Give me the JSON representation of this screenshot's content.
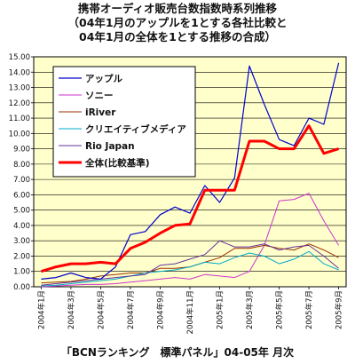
{
  "title_lines": [
    "携帯オーディオ販売台数指数時系列推移",
    "（04年1月のアップルを1とする各社比較と",
    "04年1月の全体を1とする推移の合成）"
  ],
  "footer": "「BCNランキング　標準パネル」04-05年 月次",
  "chart_data": {
    "type": "line",
    "x": [
      "2004年1月",
      "2004年2月",
      "2004年3月",
      "2004年4月",
      "2004年5月",
      "2004年6月",
      "2004年7月",
      "2004年8月",
      "2004年9月",
      "2004年10月",
      "2004年11月",
      "2004年12月",
      "2005年1月",
      "2005年2月",
      "2005年3月",
      "2005年4月",
      "2005年5月",
      "2005年6月",
      "2005年7月",
      "2005年8月",
      "2005年9月"
    ],
    "x_tick_labels": [
      "2004年1月",
      "2004年3月",
      "2004年5月",
      "2004年7月",
      "2004年9月",
      "2004年11月",
      "2005年1月",
      "2005年3月",
      "2005年5月",
      "2005年7月",
      "2005年9月"
    ],
    "ylim": [
      0,
      15
    ],
    "y_ticks": [
      "0.00",
      "1.00",
      "2.00",
      "3.00",
      "4.00",
      "5.00",
      "6.00",
      "7.00",
      "8.00",
      "9.00",
      "10.00",
      "11.00",
      "12.00",
      "13.00",
      "14.00",
      "15.00"
    ],
    "grid": true,
    "background": "#ffffcc",
    "legend_position": "top-left",
    "series": [
      {
        "name": "アップル",
        "color": "#0000cc",
        "width": 1.2,
        "values": [
          0.5,
          0.6,
          0.9,
          0.6,
          0.5,
          1.3,
          3.4,
          3.6,
          4.7,
          5.2,
          4.8,
          6.6,
          5.5,
          7.1,
          14.4,
          11.9,
          9.6,
          9.2,
          11.0,
          10.6,
          14.6
        ]
      },
      {
        "name": "ソニー",
        "color": "#cc33cc",
        "width": 1.0,
        "values": [
          0.0,
          0.05,
          0.1,
          0.15,
          0.15,
          0.2,
          0.3,
          0.4,
          0.5,
          0.6,
          0.5,
          0.8,
          0.7,
          0.6,
          1.0,
          2.7,
          5.6,
          5.7,
          6.1,
          4.3,
          2.7
        ]
      },
      {
        "name": "iRiver",
        "color": "#993300",
        "width": 1.0,
        "values": [
          0.25,
          0.3,
          0.35,
          0.5,
          0.7,
          0.8,
          0.9,
          0.9,
          1.2,
          1.2,
          1.3,
          1.6,
          1.9,
          2.5,
          2.5,
          2.7,
          2.5,
          2.4,
          2.8,
          2.4,
          1.9
        ]
      },
      {
        "name": "クリエイティブメディア",
        "color": "#00aacc",
        "width": 1.0,
        "values": [
          0.05,
          0.1,
          0.2,
          0.3,
          0.4,
          0.5,
          0.7,
          0.9,
          1.0,
          1.1,
          1.3,
          1.6,
          1.5,
          1.9,
          2.2,
          2.0,
          1.5,
          1.8,
          2.3,
          1.5,
          1.1
        ]
      },
      {
        "name": "Rio Japan",
        "color": "#663399",
        "width": 1.0,
        "values": [
          0.1,
          0.2,
          0.3,
          0.4,
          0.5,
          0.6,
          0.7,
          0.8,
          1.4,
          1.5,
          1.8,
          2.1,
          3.0,
          2.6,
          2.6,
          2.8,
          2.4,
          2.6,
          2.7,
          2.0,
          1.2
        ]
      },
      {
        "name": "全体(比較基準)",
        "color": "#ff0000",
        "width": 3.0,
        "values": [
          1.0,
          1.3,
          1.5,
          1.5,
          1.6,
          1.5,
          2.5,
          2.9,
          3.5,
          4.0,
          4.1,
          6.3,
          6.3,
          6.3,
          9.5,
          9.5,
          9.0,
          9.0,
          10.5,
          8.7,
          9.0
        ]
      }
    ]
  }
}
